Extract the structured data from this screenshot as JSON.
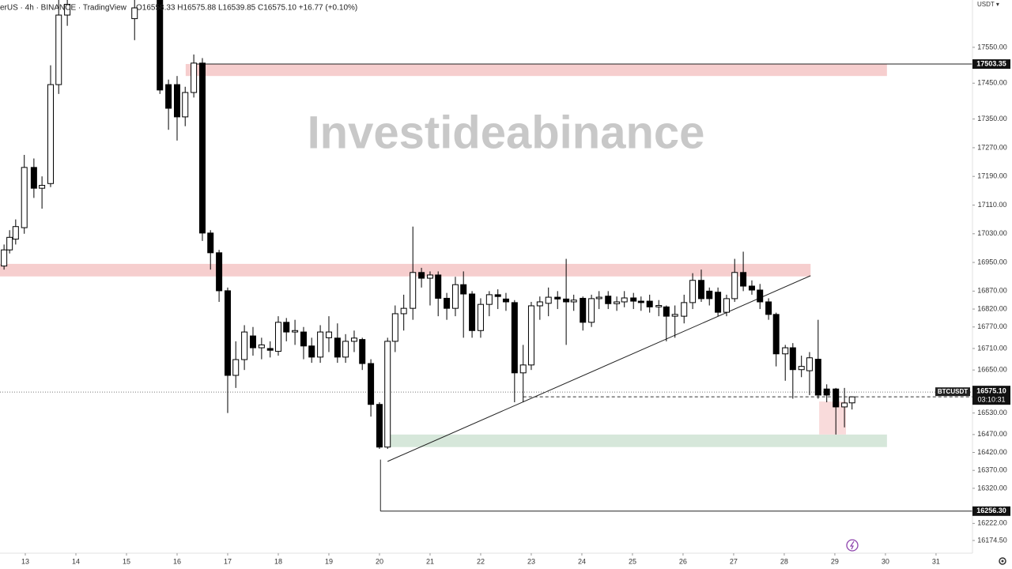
{
  "chart_data": {
    "type": "candlestick",
    "title": "erUS · 4h · BINANCE · TradingView",
    "ohlc_text": "O16558.33 H16575.88 L16539.85 C16575.10 +16.77 (+0.10%)",
    "watermark": "Investideabinance",
    "currency": "USDT ▾",
    "xlim": [
      12.5,
      31.72
    ],
    "xticks": [
      13,
      14,
      15,
      16,
      17,
      18,
      19,
      20,
      21,
      22,
      23,
      24,
      25,
      26,
      27,
      28,
      29,
      30,
      31
    ],
    "ylim": [
      16139,
      17682
    ],
    "yticks": [
      {
        "value": 17550,
        "label": "17550.00"
      },
      {
        "value": 17450,
        "label": "17450.00"
      },
      {
        "value": 17350,
        "label": "17350.00"
      },
      {
        "value": 17270,
        "label": "17270.00"
      },
      {
        "value": 17190,
        "label": "17190.00"
      },
      {
        "value": 17110,
        "label": "17110.00"
      },
      {
        "value": 17030,
        "label": "17030.00"
      },
      {
        "value": 16950,
        "label": "16950.00"
      },
      {
        "value": 16870,
        "label": "16870.00"
      },
      {
        "value": 16820,
        "label": "16820.00"
      },
      {
        "value": 16770,
        "label": "16770.00"
      },
      {
        "value": 16710,
        "label": "16710.00"
      },
      {
        "value": 16650,
        "label": "16650.00"
      },
      {
        "value": 16530,
        "label": "16530.00"
      },
      {
        "value": 16470,
        "label": "16470.00"
      },
      {
        "value": 16420,
        "label": "16420.00"
      },
      {
        "value": 16370,
        "label": "16370.00"
      },
      {
        "value": 16320,
        "label": "16320.00"
      },
      {
        "value": 16222,
        "label": "16222.00"
      },
      {
        "value": 16174.5,
        "label": "16174.50"
      }
    ],
    "up_color": "#ffffff",
    "down_color": "#000000",
    "x": [
      12.58,
      12.69,
      12.81,
      12.98,
      13.17,
      13.33,
      13.5,
      13.66,
      13.83,
      15.16,
      15.66,
      15.83,
      16.0,
      16.16,
      16.33,
      16.5,
      16.66,
      16.83,
      17.0,
      17.16,
      17.33,
      17.5,
      17.67,
      17.84,
      18.0,
      18.16,
      18.33,
      18.5,
      18.66,
      18.83,
      19.0,
      19.17,
      19.33,
      19.5,
      19.66,
      19.83,
      20.0,
      20.16,
      20.31,
      20.48,
      20.66,
      20.83,
      21.0,
      21.16,
      21.33,
      21.5,
      21.66,
      21.83,
      22.0,
      22.17,
      22.34,
      22.5,
      22.67,
      22.84,
      23.0,
      23.17,
      23.34,
      23.52,
      23.69,
      23.84,
      24.02,
      24.19,
      24.34,
      24.52,
      24.69,
      24.84,
      25.02,
      25.17,
      25.34,
      25.52,
      25.67,
      25.84,
      26.02,
      26.19,
      26.36,
      26.52,
      26.69,
      26.86,
      27.02,
      27.19,
      27.36,
      27.52,
      27.69,
      27.84,
      28.02,
      28.17,
      28.34,
      28.5,
      28.67,
      28.84,
      29.02,
      29.19,
      29.34
    ],
    "open": [
      16940,
      16985,
      17015,
      17047,
      17215,
      17157,
      17170,
      17446,
      17640,
      17630,
      17682,
      17446,
      17446,
      17356,
      17424,
      17506,
      17032,
      16977,
      16871,
      16635,
      16679,
      16745,
      16712,
      16710,
      16702,
      16783,
      16756,
      16756,
      16717,
      16686,
      16740,
      16739,
      16686,
      16730,
      16735,
      16668,
      16554,
      16435,
      16730,
      16807,
      16822,
      16922,
      16906,
      16915,
      16850,
      16822,
      16888,
      16862,
      16760,
      16833,
      16860,
      16848,
      16838,
      16642,
      16664,
      16829,
      16836,
      16853,
      16848,
      16840,
      16850,
      16783,
      16849,
      16856,
      16835,
      16840,
      16851,
      16842,
      16842,
      16826,
      16826,
      16800,
      16800,
      16838,
      16900,
      16870,
      16867,
      16811,
      16849,
      16922,
      16884,
      16873,
      16840,
      16805,
      16695,
      16712,
      16651,
      16648,
      16680,
      16597,
      16597,
      16547,
      16558.33
    ],
    "high": [
      17000,
      17040,
      17070,
      17250,
      17240,
      17190,
      17500,
      17682,
      17682,
      17682,
      17682,
      17460,
      17470,
      17440,
      17530,
      17520,
      17040,
      16985,
      16880,
      16730,
      16775,
      16770,
      16740,
      16730,
      16800,
      16795,
      16790,
      16770,
      16740,
      16775,
      16800,
      16780,
      16750,
      16760,
      16740,
      16680,
      16560,
      16740,
      16830,
      16860,
      17050,
      16935,
      16925,
      16925,
      16865,
      16910,
      16925,
      16870,
      16850,
      16870,
      16875,
      16865,
      16845,
      16720,
      16840,
      16855,
      16880,
      16870,
      16960,
      16860,
      16855,
      16860,
      16870,
      16870,
      16855,
      16870,
      16865,
      16855,
      16860,
      16845,
      16830,
      16830,
      16860,
      16920,
      16930,
      16880,
      16880,
      16860,
      16960,
      16980,
      16900,
      16890,
      16850,
      16810,
      16720,
      16725,
      16690,
      16700,
      16790,
      16610,
      16600,
      16600,
      16575.88
    ],
    "low": [
      16930,
      16975,
      17000,
      17030,
      17130,
      17100,
      17160,
      17420,
      17610,
      17570,
      17420,
      17320,
      17290,
      17330,
      17410,
      17010,
      16930,
      16840,
      16530,
      16600,
      16650,
      16690,
      16680,
      16685,
      16690,
      16730,
      16720,
      16680,
      16670,
      16670,
      16700,
      16670,
      16670,
      16700,
      16650,
      16520,
      16430,
      16430,
      16700,
      16760,
      16790,
      16880,
      16830,
      16800,
      16790,
      16800,
      16740,
      16740,
      16740,
      16800,
      16820,
      16815,
      16560,
      16560,
      16650,
      16790,
      16800,
      16820,
      16720,
      16815,
      16760,
      16770,
      16820,
      16820,
      16815,
      16825,
      16820,
      16815,
      16810,
      16800,
      16730,
      16740,
      16780,
      16820,
      16840,
      16830,
      16800,
      16800,
      16840,
      16870,
      16860,
      16820,
      16790,
      16660,
      16620,
      16570,
      16630,
      16580,
      16570,
      16560,
      16470,
      16490,
      16539.85
    ],
    "close": [
      16985,
      17020,
      17050,
      17215,
      17157,
      17165,
      17446,
      17640,
      17670,
      17660,
      17431,
      17380,
      17356,
      17424,
      17506,
      17032,
      16977,
      16871,
      16635,
      16679,
      16756,
      16712,
      16720,
      16705,
      16783,
      16756,
      16760,
      16717,
      16686,
      16756,
      16756,
      16686,
      16730,
      16739,
      16668,
      16554,
      16435,
      16730,
      16807,
      16822,
      16922,
      16906,
      16915,
      16850,
      16822,
      16888,
      16862,
      16760,
      16833,
      16860,
      16855,
      16840,
      16642,
      16664,
      16829,
      16840,
      16853,
      16848,
      16840,
      16845,
      16783,
      16849,
      16853,
      16835,
      16840,
      16851,
      16842,
      16838,
      16826,
      16830,
      16800,
      16805,
      16838,
      16900,
      16849,
      16849,
      16811,
      16849,
      16922,
      16884,
      16873,
      16840,
      16805,
      16695,
      16712,
      16651,
      16660,
      16684,
      16580,
      16580,
      16547,
      16558,
      16575.1
    ],
    "zones": [
      {
        "x": [
          16.17,
          30.03
        ],
        "y": [
          17470,
          17503.5
        ],
        "color": "#f5c6c6"
      },
      {
        "x": [
          12.5,
          28.52
        ],
        "y": [
          16911,
          16946
        ],
        "color": "#f5c6c6"
      },
      {
        "x": [
          20.16,
          30.03
        ],
        "y": [
          16435,
          16470
        ],
        "color": "#cfe3d3"
      },
      {
        "x": [
          28.69,
          29.22
        ],
        "y": [
          16470,
          16562
        ],
        "color": "#f8d5d5"
      }
    ],
    "lines": [
      {
        "x": [
          20.16,
          28.52
        ],
        "y": [
          16395,
          16913
        ]
      },
      {
        "x": [
          20.02,
          20.02
        ],
        "y": [
          16400,
          16256.3
        ]
      }
    ],
    "price_lines": [
      {
        "value": 17503.35,
        "label": "17503.35",
        "from": 16.33
      },
      {
        "value": 16256.3,
        "label": "16256.30",
        "from": 20.02
      }
    ],
    "last": {
      "value": 16575.1,
      "label": "16575.10",
      "symbol": "BTCUSDT",
      "timer": "03:10:31",
      "dash_from": 22.84
    }
  }
}
